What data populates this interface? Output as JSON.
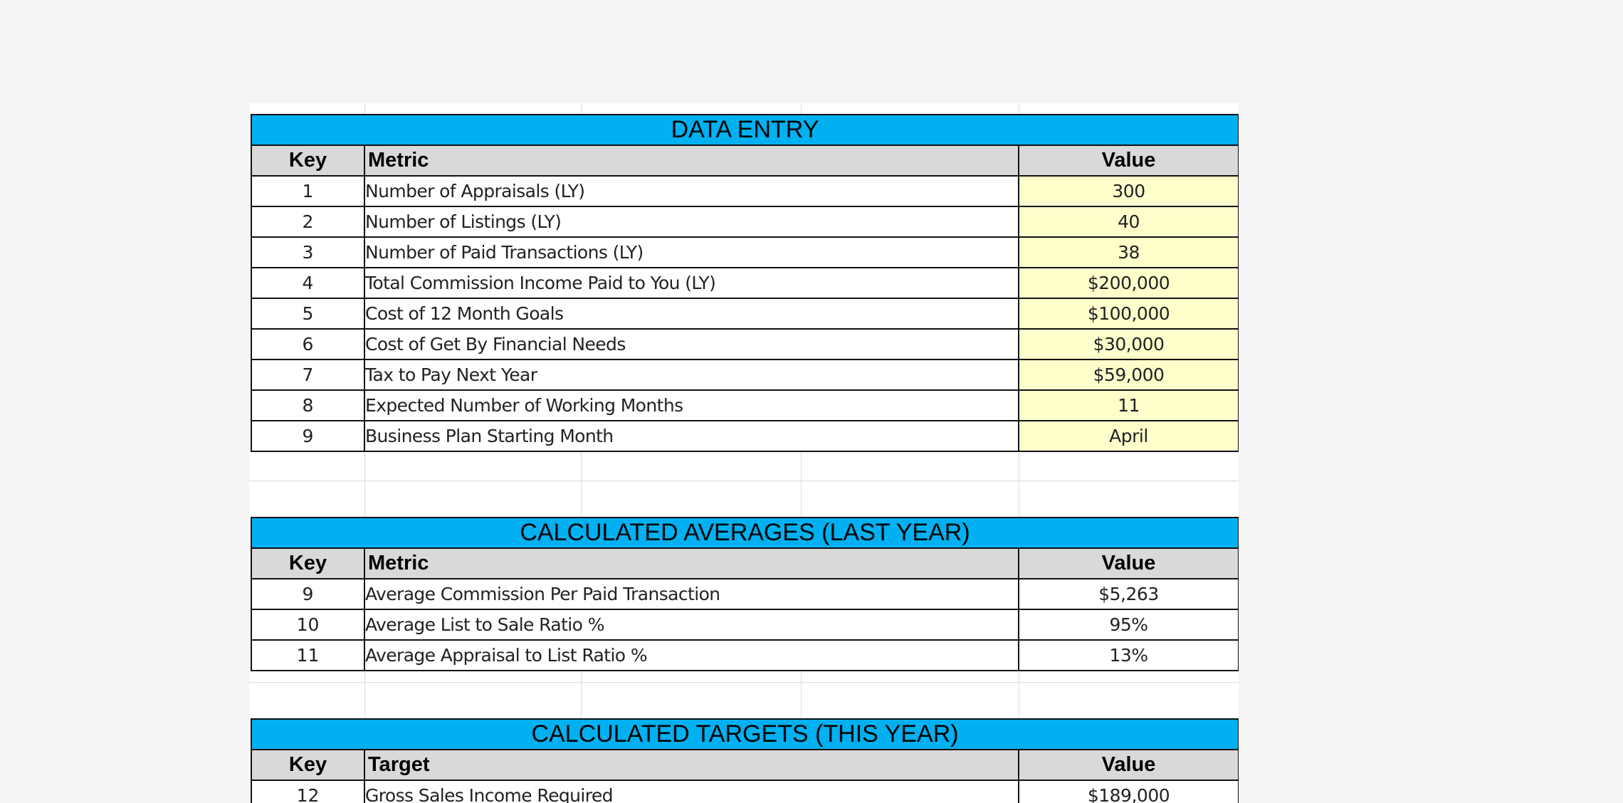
{
  "data_entry": {
    "title": "DATA ENTRY",
    "headers": {
      "key": "Key",
      "metric": "Metric",
      "value": "Value"
    },
    "rows": [
      {
        "key": "1",
        "metric": "Number of Appraisals (LY)",
        "value": "300"
      },
      {
        "key": "2",
        "metric": "Number of Listings (LY)",
        "value": "40"
      },
      {
        "key": "3",
        "metric": "Number of Paid Transactions (LY)",
        "value": "38"
      },
      {
        "key": "4",
        "metric": "Total Commission Income Paid to You (LY)",
        "value": "$200,000"
      },
      {
        "key": "5",
        "metric": "Cost of 12 Month Goals",
        "value": "$100,000"
      },
      {
        "key": "6",
        "metric": "Cost of Get By Financial Needs",
        "value": "$30,000"
      },
      {
        "key": "7",
        "metric": "Tax to Pay Next Year",
        "value": "$59,000"
      },
      {
        "key": "8",
        "metric": "Expected Number of Working Months",
        "value": "11"
      },
      {
        "key": "9",
        "metric": "Business Plan Starting Month",
        "value": "April"
      }
    ]
  },
  "averages": {
    "title": "CALCULATED AVERAGES (LAST YEAR)",
    "headers": {
      "key": "Key",
      "metric": "Metric",
      "value": "Value"
    },
    "rows": [
      {
        "key": "9",
        "metric": "Average Commission Per Paid Transaction",
        "value": "$5,263"
      },
      {
        "key": "10",
        "metric": "Average List to Sale Ratio %",
        "value": "95%"
      },
      {
        "key": "11",
        "metric": "Average Appraisal to List Ratio %",
        "value": "13%"
      }
    ]
  },
  "targets": {
    "title": "CALCULATED TARGETS (THIS YEAR)",
    "headers": {
      "key": "Key",
      "target": "Target",
      "value": "Value"
    },
    "rows": [
      {
        "key": "12",
        "target": "Gross Sales Income Required",
        "value": "$189,000"
      }
    ]
  },
  "colors": {
    "section_header": "#00b0f0",
    "column_header": "#d9d9d9",
    "input_cell": "#ffffcc",
    "border": "#111111"
  }
}
